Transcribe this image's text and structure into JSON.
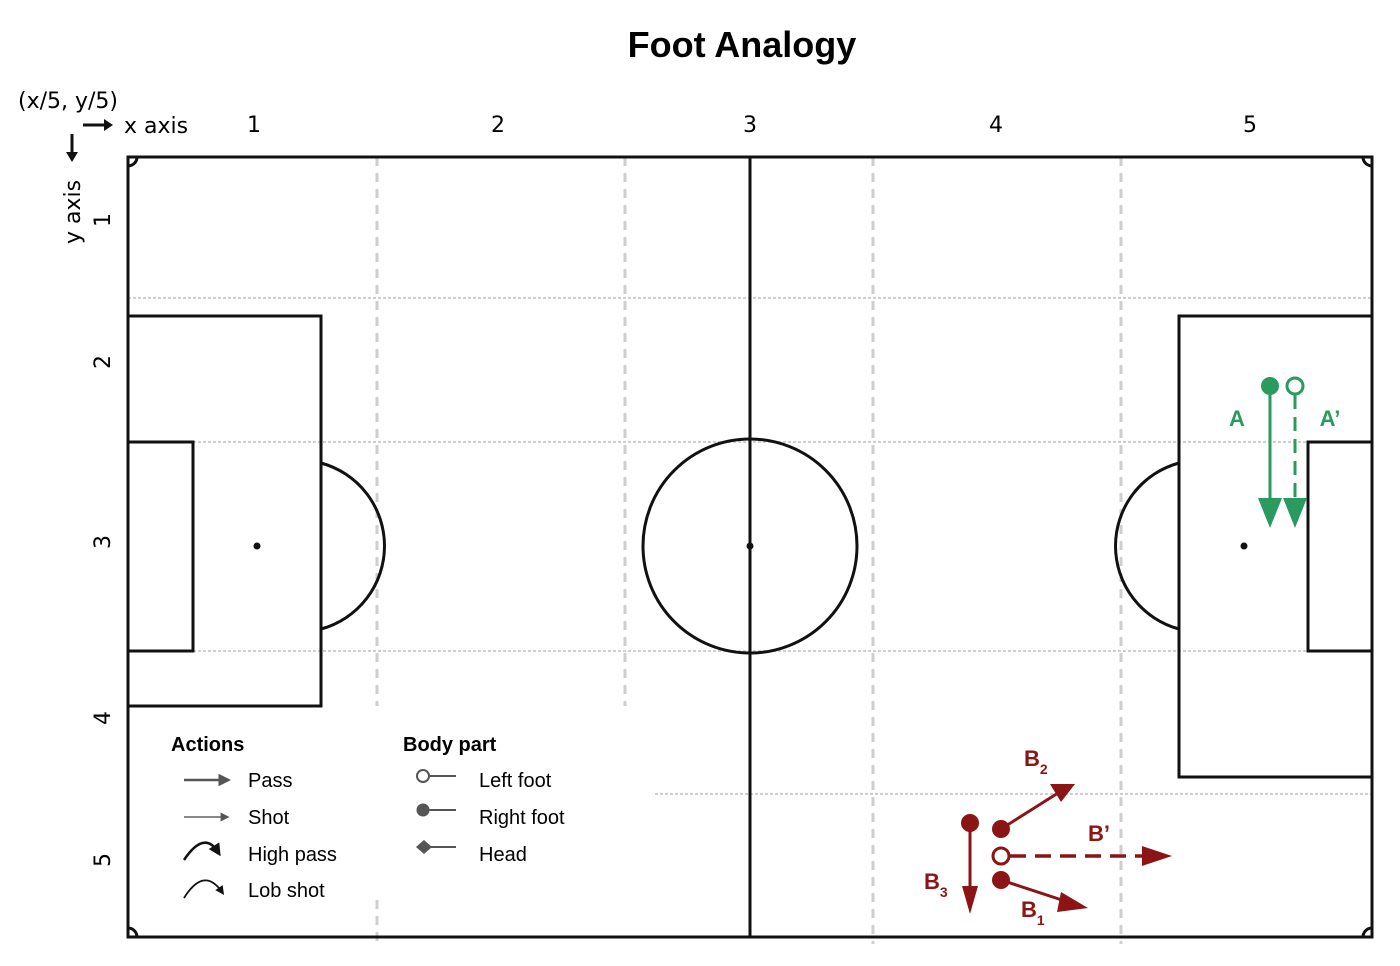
{
  "title": "Foot Analogy",
  "coords_label": "(x/5, y/5)",
  "x_axis_label": "x axis",
  "y_axis_label": "y axis",
  "x_ticks": [
    "1",
    "2",
    "3",
    "4",
    "5"
  ],
  "y_ticks": [
    "1",
    "2",
    "3",
    "4",
    "5"
  ],
  "legend": {
    "actions_title": "Actions",
    "actions": [
      "Pass",
      "Shot",
      "High pass",
      "Lob shot"
    ],
    "body_title": "Body part",
    "body_parts": [
      "Left foot",
      "Right foot",
      "Head"
    ]
  },
  "annotations": {
    "A": "A",
    "A_prime": "A’",
    "B1": "B",
    "B1_sub": "1",
    "B2": "B",
    "B2_sub": "2",
    "B3": "B",
    "B3_sub": "3",
    "B_prime": "B’"
  },
  "colors": {
    "green": "#2a9a5e",
    "red": "#8b1414",
    "line": "#111111",
    "grid": "#cfcfcf"
  }
}
